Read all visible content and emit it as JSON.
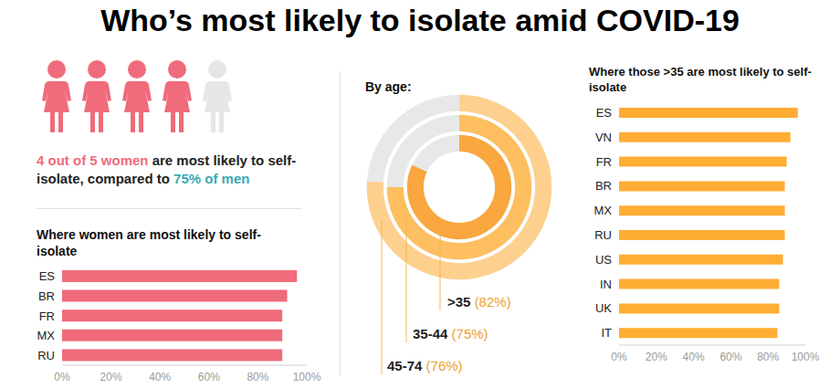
{
  "title": "Who’s most likely to isolate amid COVID-19",
  "headline": {
    "icons_filled": 4,
    "icons_total": 5,
    "icon_color": "#f06b7b",
    "segments": [
      {
        "text": "4 out of 5 women",
        "color": "#f06b7b"
      },
      {
        "text": " are most likely to self-isolate, compared to ",
        "color": "#222222"
      },
      {
        "text": "75% of men",
        "color": "#3aa9b5"
      }
    ]
  },
  "chart_data": [
    {
      "type": "bar",
      "orientation": "horizontal",
      "title": "Where women are most likely to self-isolate",
      "categories": [
        "ES",
        "BR",
        "FR",
        "MX",
        "RU"
      ],
      "values": [
        96,
        92,
        90,
        90,
        90
      ],
      "color": "#f06b7b",
      "xlim": [
        0,
        100
      ],
      "xticks": [
        {
          "value": 0,
          "label": "0%"
        },
        {
          "value": 20,
          "label": "20%"
        },
        {
          "value": 40,
          "label": "40%"
        },
        {
          "value": 60,
          "label": "60%"
        },
        {
          "value": 80,
          "label": "80%"
        },
        {
          "value": 100,
          "label": "100%"
        }
      ],
      "grid": false
    },
    {
      "type": "radial_bar",
      "title": "By age:",
      "categories": [
        ">35",
        "35-44",
        "45-74"
      ],
      "values": [
        82,
        75,
        76
      ],
      "value_labels": [
        "(82%)",
        "(75%)",
        "(76%)"
      ],
      "colors": [
        "#f9a73e",
        "#fdbf5f",
        "#fed08e"
      ],
      "ylim": [
        0,
        100
      ],
      "tick_labels": false
    },
    {
      "type": "bar",
      "orientation": "horizontal",
      "title": "Where those >35 are most likely to self-isolate",
      "categories": [
        "ES",
        "VN",
        "FR",
        "BR",
        "MX",
        "RU",
        "US",
        "IN",
        "UK",
        "IT"
      ],
      "values": [
        96,
        92,
        90,
        89,
        89,
        89,
        88,
        86,
        86,
        85
      ],
      "color": "#ffad33",
      "xlim": [
        0,
        100
      ],
      "xticks": [
        {
          "value": 0,
          "label": "0%"
        },
        {
          "value": 20,
          "label": "20%"
        },
        {
          "value": 40,
          "label": "40%"
        },
        {
          "value": 60,
          "label": "60%"
        },
        {
          "value": 80,
          "label": "80%"
        },
        {
          "value": 100,
          "label": "100%"
        }
      ],
      "grid": false
    }
  ]
}
